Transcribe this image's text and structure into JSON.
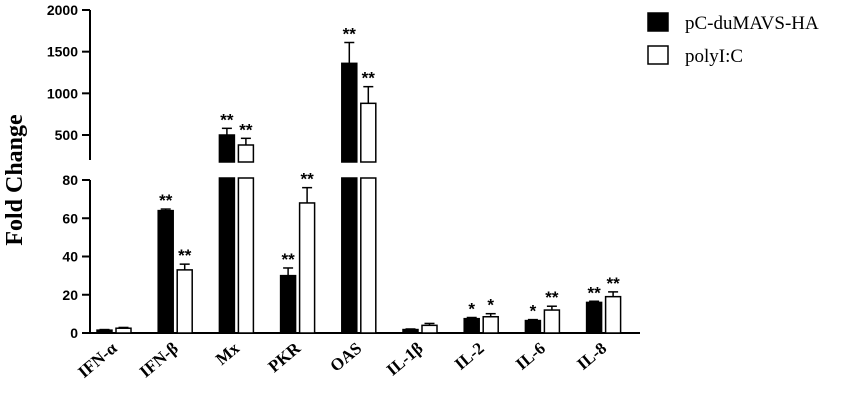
{
  "chart_data": {
    "type": "bar",
    "ylabel": "Fold Change",
    "categories": [
      "IFN-α",
      "IFN-β",
      "Mx",
      "PKR",
      "OAS",
      "IL-1β",
      "IL-2",
      "IL-6",
      "IL-8"
    ],
    "series": [
      {
        "name": "pC-duMAVS-HA",
        "color": "#000000",
        "fill": "solid",
        "values": [
          1.5,
          64,
          500,
          30,
          1360,
          1.8,
          7.5,
          6.5,
          16
        ],
        "errors": [
          0.3,
          0.8,
          80,
          4,
          250,
          0.3,
          0.6,
          0.5,
          0.6
        ],
        "significance": [
          "",
          "**",
          "**",
          "**",
          "**",
          "",
          "*",
          "*",
          "**"
        ]
      },
      {
        "name": "polyI:C",
        "color": "#ffffff",
        "fill": "outline",
        "values": [
          2.5,
          33,
          380,
          68,
          880,
          4.0,
          8.5,
          12,
          19
        ],
        "errors": [
          0.4,
          3,
          80,
          8,
          200,
          1.0,
          1.6,
          2.0,
          2.5
        ],
        "significance": [
          "",
          "**",
          "**",
          "**",
          "**",
          "",
          "*",
          "**",
          "**"
        ]
      }
    ],
    "y_axis_break": true,
    "lower_segment": {
      "ylim": [
        0,
        80
      ],
      "ticks": [
        "0",
        "20",
        "40",
        "60",
        "80"
      ]
    },
    "upper_segment": {
      "ylim": [
        200,
        2000
      ],
      "ticks": [
        "500",
        "1000",
        "1500",
        "2000"
      ]
    },
    "legend_position": "top-right"
  }
}
